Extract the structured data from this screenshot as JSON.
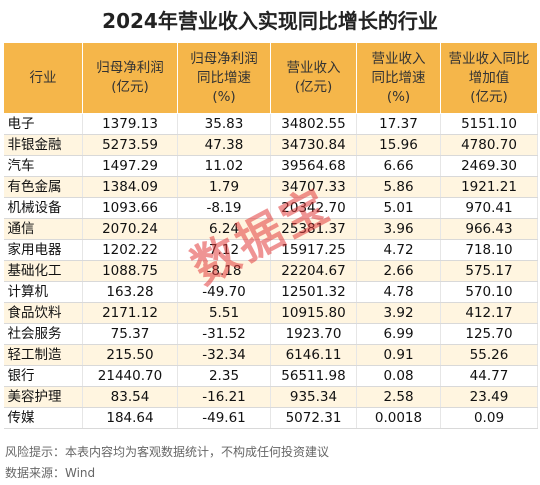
{
  "title": "2024年营业收入实现同比增长的行业",
  "headers": [
    [
      "行业"
    ],
    [
      "归母净利润",
      "(亿元)"
    ],
    [
      "归母净利润",
      "同比增速",
      "(%)"
    ],
    [
      "营业收入",
      "(亿元)"
    ],
    [
      "营业收入",
      "同比增速",
      "(%)"
    ],
    [
      "营业收入同比",
      "增加值",
      "(亿元)"
    ]
  ],
  "rows": [
    [
      "电子",
      "1379.13",
      "35.83",
      "34802.55",
      "17.37",
      "5151.10"
    ],
    [
      "非银金融",
      "5273.59",
      "47.38",
      "34730.84",
      "15.96",
      "4780.70"
    ],
    [
      "汽车",
      "1497.29",
      "11.02",
      "39564.68",
      "6.66",
      "2469.30"
    ],
    [
      "有色金属",
      "1384.09",
      "1.79",
      "34707.33",
      "5.86",
      "1921.21"
    ],
    [
      "机械设备",
      "1093.66",
      "-8.19",
      "20342.70",
      "5.01",
      "970.41"
    ],
    [
      "通信",
      "2070.24",
      "6.24",
      "25381.37",
      "3.96",
      "966.43"
    ],
    [
      "家用电器",
      "1202.22",
      "7.12",
      "15917.25",
      "4.72",
      "718.10"
    ],
    [
      "基础化工",
      "1088.75",
      "-8.18",
      "22204.67",
      "2.66",
      "575.17"
    ],
    [
      "计算机",
      "163.28",
      "-49.70",
      "12501.32",
      "4.78",
      "570.10"
    ],
    [
      "食品饮料",
      "2171.12",
      "5.51",
      "10915.80",
      "3.92",
      "412.17"
    ],
    [
      "社会服务",
      "75.37",
      "-31.52",
      "1923.70",
      "6.99",
      "125.70"
    ],
    [
      "轻工制造",
      "215.50",
      "-32.34",
      "6146.11",
      "0.91",
      "55.26"
    ],
    [
      "银行",
      "21440.70",
      "2.35",
      "56511.98",
      "0.08",
      "44.77"
    ],
    [
      "美容护理",
      "83.54",
      "-16.21",
      "935.34",
      "2.58",
      "23.49"
    ],
    [
      "传媒",
      "184.64",
      "-49.61",
      "5072.31",
      "0.0018",
      "0.09"
    ]
  ],
  "notes": {
    "risk": "风险提示：本表内容均为客观数据统计，不构成任何投资建议",
    "source": "数据来源：Wind"
  },
  "watermark": "数据宝",
  "colors": {
    "header_bg": "#f5b64a",
    "alt_row_bg": "#fff5e0",
    "watermark": "#e23c3c"
  }
}
